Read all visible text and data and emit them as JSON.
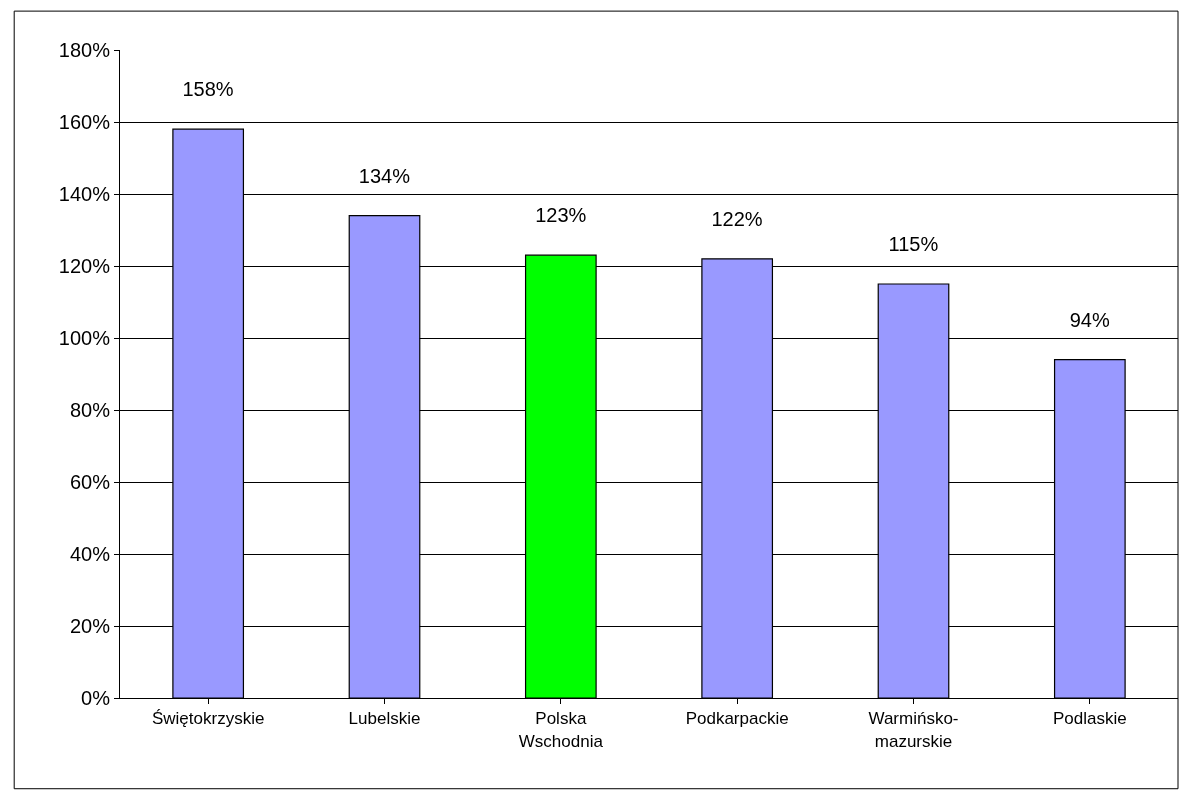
{
  "chart_data": {
    "type": "bar",
    "categories": [
      "Świętokrzyskie",
      "Lubelskie",
      "Polska Wschodnia",
      "Podkarpackie",
      "Warmińsko-mazurskie",
      "Podlaskie"
    ],
    "values": [
      158,
      134,
      123,
      122,
      115,
      94
    ],
    "colors": [
      "#9999ff",
      "#9999ff",
      "#00ff00",
      "#9999ff",
      "#9999ff",
      "#9999ff"
    ],
    "value_labels": [
      "158%",
      "134%",
      "123%",
      "122%",
      "115%",
      "94%"
    ],
    "ylim": [
      0,
      180
    ],
    "yticks": [
      {
        "value": 0,
        "label": "0%"
      },
      {
        "value": 20,
        "label": "20%"
      },
      {
        "value": 40,
        "label": "40%"
      },
      {
        "value": 60,
        "label": "60%"
      },
      {
        "value": 80,
        "label": "80%"
      },
      {
        "value": 100,
        "label": "100%"
      },
      {
        "value": 120,
        "label": "120%"
      },
      {
        "value": 140,
        "label": "140%"
      },
      {
        "value": 160,
        "label": "160%"
      },
      {
        "value": 180,
        "label": "180%"
      }
    ],
    "grid": "y"
  }
}
